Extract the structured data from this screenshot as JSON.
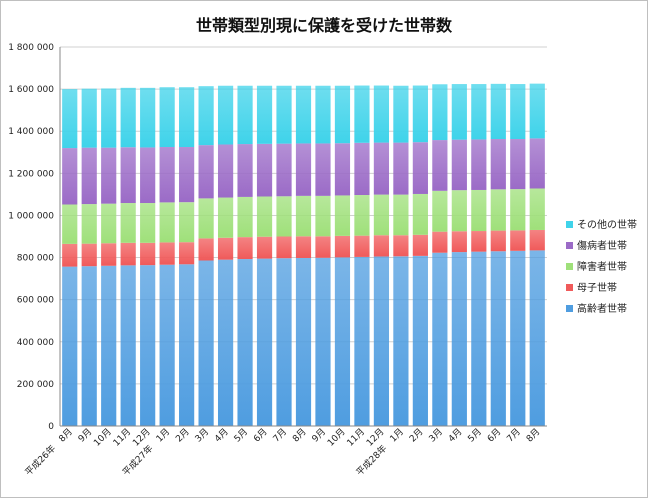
{
  "chart_data": {
    "type": "bar",
    "stacked": true,
    "title": "世帯類型別現に保護を受けた世帯数",
    "ylim": [
      0,
      1800000
    ],
    "y_ticks": [
      "0",
      "200 000",
      "400 000",
      "600 000",
      "800 000",
      "1 000 000",
      "1 200 000",
      "1 400 000",
      "1 600 000",
      "1 800 000"
    ],
    "y_tick_values": [
      0,
      200000,
      400000,
      600000,
      800000,
      1000000,
      1200000,
      1400000,
      1600000,
      1800000
    ],
    "categories": [
      "平成26年　8月",
      "9月",
      "10月",
      "11月",
      "12月",
      "平成27年　1月",
      "2月",
      "3月",
      "4月",
      "5月",
      "6月",
      "7月",
      "8月",
      "9月",
      "10月",
      "11月",
      "12月",
      "平成28年　1月",
      "2月",
      "3月",
      "4月",
      "5月",
      "6月",
      "7月",
      "8月"
    ],
    "grid": true,
    "legend_position": "right",
    "series": [
      {
        "name": "高齢者世帯",
        "color": "#4f9de0",
        "values": [
          757000,
          759000,
          761000,
          763000,
          764000,
          766000,
          768000,
          786000,
          790000,
          793000,
          795000,
          797000,
          798000,
          799000,
          801000,
          803000,
          805000,
          806000,
          808000,
          823000,
          826000,
          828000,
          830000,
          832000,
          834000
        ]
      },
      {
        "name": "母子世帯",
        "color": "#f05a5a",
        "values": [
          108000,
          107000,
          107000,
          107000,
          106000,
          106000,
          105000,
          105000,
          104000,
          104000,
          104000,
          103000,
          103000,
          102000,
          102000,
          101000,
          101000,
          100000,
          100000,
          100000,
          99000,
          98000,
          98000,
          97000,
          97000
        ]
      },
      {
        "name": "障害者世帯",
        "color": "#9fe07a",
        "values": [
          187000,
          188000,
          188000,
          189000,
          189000,
          190000,
          190000,
          190000,
          191000,
          191000,
          191000,
          191000,
          192000,
          192000,
          192000,
          193000,
          193000,
          193000,
          194000,
          194000,
          195000,
          195000,
          196000,
          196000,
          197000
        ]
      },
      {
        "name": "傷病者世帯",
        "color": "#9b6bc7",
        "values": [
          268000,
          268000,
          266000,
          265000,
          264000,
          263000,
          262000,
          253000,
          252000,
          251000,
          250000,
          250000,
          249000,
          249000,
          248000,
          248000,
          247000,
          247000,
          246000,
          241000,
          240000,
          240000,
          239000,
          238000,
          238000
        ]
      },
      {
        "name": "その他の世帯",
        "color": "#3fd3ea",
        "values": [
          280000,
          280000,
          281000,
          282000,
          283000,
          284000,
          284000,
          280000,
          279000,
          277000,
          276000,
          275000,
          274000,
          274000,
          273000,
          272000,
          271000,
          270000,
          269000,
          265000,
          264000,
          263000,
          262000,
          261000,
          260000
        ]
      }
    ]
  }
}
